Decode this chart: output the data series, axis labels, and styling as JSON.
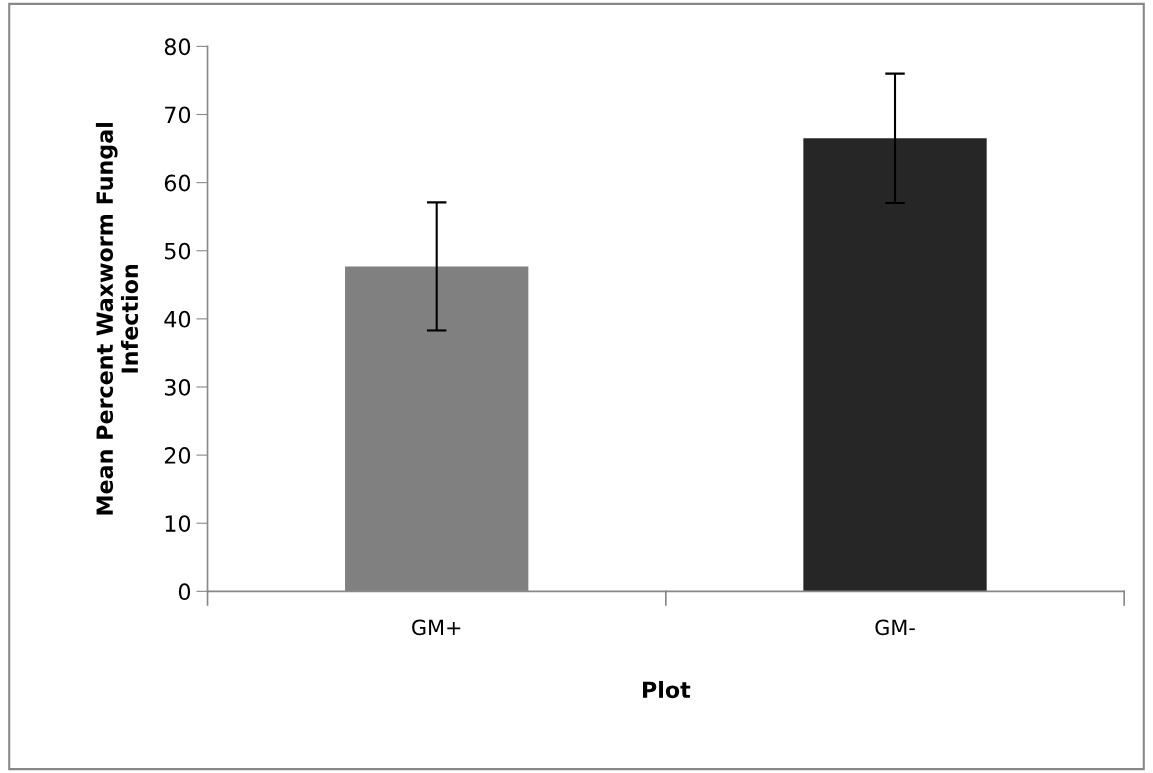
{
  "chart_data": {
    "type": "bar",
    "xlabel": "Plot",
    "ylabel": "Mean Percent Waxworm Fungal\nInfection",
    "categories": [
      "GM+",
      "GM-"
    ],
    "values": [
      47.7,
      66.5
    ],
    "colors": [
      "#808080",
      "#262626"
    ],
    "errors": [
      9.4,
      9.5
    ],
    "ylim": [
      0,
      80
    ],
    "yticks": [
      0,
      10,
      20,
      30,
      40,
      50,
      60,
      70,
      80
    ],
    "grid": false,
    "legend": false
  }
}
